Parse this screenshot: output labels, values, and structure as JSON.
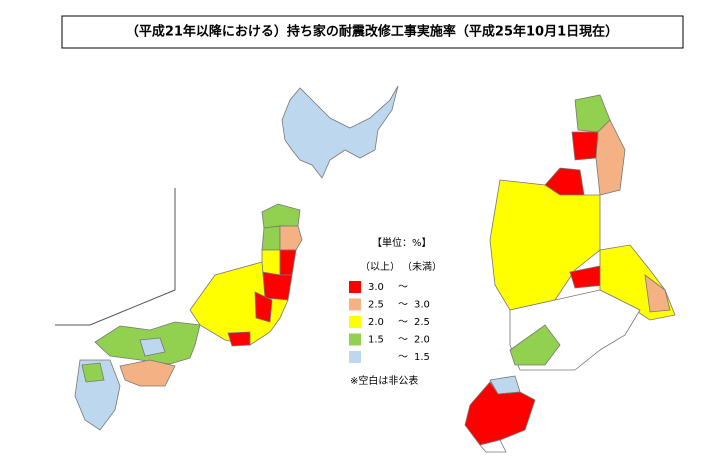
{
  "title": "（平成21年以降における）持ち家の耐震改修工事実施率（平成25年10月1日現在）",
  "legend": {
    "header": "【単位：%】",
    "col_from": "（以上）",
    "col_to": "（未満）",
    "separator": "〜",
    "items": [
      {
        "color": "#ff0000",
        "from": "3.0"
      },
      {
        "color": "#f4b183",
        "from": "2.5",
        "to": "3.0"
      },
      {
        "color": "#ffff00",
        "from": "2.0",
        "to": "2.5"
      },
      {
        "color": "#92d050",
        "from": "1.5",
        "to": "2.0"
      },
      {
        "color": "#bdd7ee",
        "to": "1.5"
      }
    ],
    "note": "※空白は非公表"
  }
}
